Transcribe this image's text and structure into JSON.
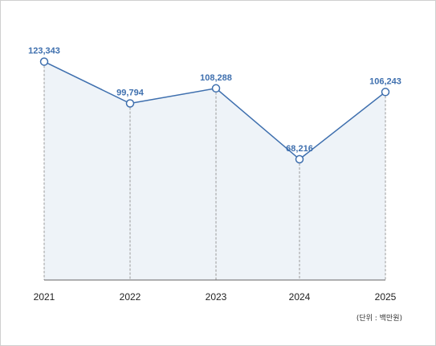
{
  "chart_data": {
    "type": "line",
    "categories": [
      "2021",
      "2022",
      "2023",
      "2024",
      "2025"
    ],
    "values": [
      123343,
      99794,
      108288,
      68216,
      106243
    ],
    "value_labels": [
      "123,343",
      "99,794",
      "108,288",
      "68,216",
      "106,243"
    ],
    "unit_note": "(단위 : 백만원)",
    "ylim": [
      0,
      135000
    ],
    "grid": false,
    "legend": "none",
    "colors": {
      "line": "#3e6fae",
      "area": "#eef3f8",
      "marker_fill": "#ffffff",
      "label": "#3e6fae",
      "guide": "#9a9a9a",
      "axis": "#666666"
    }
  }
}
